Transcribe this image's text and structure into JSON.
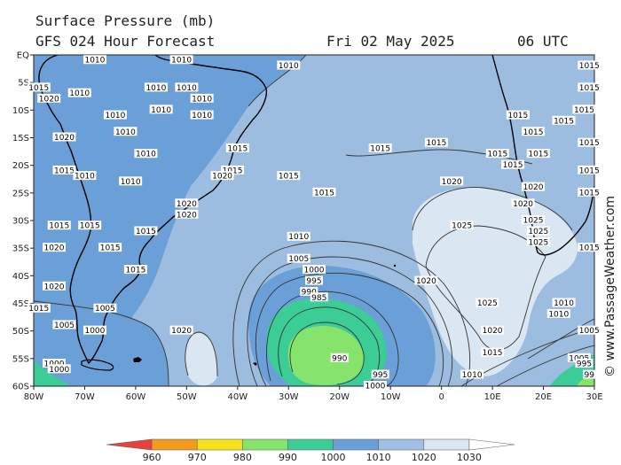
{
  "header": {
    "title": "Surface Pressure (mb)",
    "forecast": "GFS 024 Hour Forecast",
    "date": "Fri 02 May 2025",
    "time": "06 UTC"
  },
  "credit": "© www.PassageWeather.com",
  "axes": {
    "lat_labels": [
      "EQ",
      "5S",
      "10S",
      "15S",
      "20S",
      "25S",
      "30S",
      "35S",
      "40S",
      "45S",
      "50S",
      "55S",
      "60S"
    ],
    "lon_labels": [
      "80W",
      "70W",
      "60W",
      "50W",
      "40W",
      "30W",
      "20W",
      "10W",
      "0",
      "10E",
      "20E",
      "30E"
    ]
  },
  "isobar_labels": [
    {
      "t": "1010",
      "lon": -68,
      "lat": -1
    },
    {
      "t": "1010",
      "lon": -51,
      "lat": -1
    },
    {
      "t": "1010",
      "lon": -30,
      "lat": -2
    },
    {
      "t": "1015",
      "lon": -79,
      "lat": -6
    },
    {
      "t": "1010",
      "lon": -71,
      "lat": -7
    },
    {
      "t": "1010",
      "lon": -56,
      "lat": -6
    },
    {
      "t": "1010",
      "lon": -50,
      "lat": -6
    },
    {
      "t": "1010",
      "lon": -47,
      "lat": -8
    },
    {
      "t": "1020",
      "lon": -77,
      "lat": -8
    },
    {
      "t": "1010",
      "lon": -64,
      "lat": -11
    },
    {
      "t": "1010",
      "lon": -55,
      "lat": -10
    },
    {
      "t": "1010",
      "lon": -47,
      "lat": -11
    },
    {
      "t": "1010",
      "lon": -62,
      "lat": -14
    },
    {
      "t": "1010",
      "lon": -58,
      "lat": -18
    },
    {
      "t": "1020",
      "lon": -74,
      "lat": -15
    },
    {
      "t": "1015",
      "lon": -40,
      "lat": -17
    },
    {
      "t": "1015",
      "lon": -41,
      "lat": -21
    },
    {
      "t": "1020",
      "lon": -43,
      "lat": -22
    },
    {
      "t": "1015",
      "lon": -30,
      "lat": -22
    },
    {
      "t": "1015",
      "lon": -23,
      "lat": -25
    },
    {
      "t": "1015",
      "lon": -12,
      "lat": -17
    },
    {
      "t": "1015",
      "lon": -74,
      "lat": -21
    },
    {
      "t": "1010",
      "lon": -70,
      "lat": -22
    },
    {
      "t": "1010",
      "lon": -61,
      "lat": -23
    },
    {
      "t": "1020",
      "lon": -50,
      "lat": -27
    },
    {
      "t": "1020",
      "lon": -50,
      "lat": -29
    },
    {
      "t": "1015",
      "lon": -75,
      "lat": -31
    },
    {
      "t": "1015",
      "lon": -69,
      "lat": -31
    },
    {
      "t": "1015",
      "lon": -58,
      "lat": -32
    },
    {
      "t": "1015",
      "lon": -65,
      "lat": -35
    },
    {
      "t": "1020",
      "lon": -76,
      "lat": -35
    },
    {
      "t": "1015",
      "lon": -60,
      "lat": -39
    },
    {
      "t": "1010",
      "lon": -28,
      "lat": -33
    },
    {
      "t": "1005",
      "lon": -28,
      "lat": -37
    },
    {
      "t": "1000",
      "lon": -25,
      "lat": -39
    },
    {
      "t": "995",
      "lon": -25,
      "lat": -41
    },
    {
      "t": "990",
      "lon": -26,
      "lat": -43
    },
    {
      "t": "985",
      "lon": -24,
      "lat": -44
    },
    {
      "t": "990",
      "lon": -20,
      "lat": -55
    },
    {
      "t": "995",
      "lon": -12,
      "lat": -58
    },
    {
      "t": "1000",
      "lon": -13,
      "lat": -60
    },
    {
      "t": "1020",
      "lon": -76,
      "lat": -42
    },
    {
      "t": "1015",
      "lon": -79,
      "lat": -46
    },
    {
      "t": "1005",
      "lon": -74,
      "lat": -49
    },
    {
      "t": "1005",
      "lon": -66,
      "lat": -46
    },
    {
      "t": "1000",
      "lon": -68,
      "lat": -50
    },
    {
      "t": "1000",
      "lon": -76,
      "lat": -56
    },
    {
      "t": "1020",
      "lon": -51,
      "lat": -50
    },
    {
      "t": "1015",
      "lon": -1,
      "lat": -16
    },
    {
      "t": "1020",
      "lon": 2,
      "lat": -23
    },
    {
      "t": "1025",
      "lon": 4,
      "lat": -31
    },
    {
      "t": "1020",
      "lon": -3,
      "lat": -41
    },
    {
      "t": "1025",
      "lon": 9,
      "lat": -45
    },
    {
      "t": "1020",
      "lon": 10,
      "lat": -50
    },
    {
      "t": "1015",
      "lon": 10,
      "lat": -54
    },
    {
      "t": "1010",
      "lon": 6,
      "lat": -58
    },
    {
      "t": "1015",
      "lon": 15,
      "lat": -11
    },
    {
      "t": "1015",
      "lon": 18,
      "lat": -14
    },
    {
      "t": "1015",
      "lon": 11,
      "lat": -18
    },
    {
      "t": "1015",
      "lon": 14,
      "lat": -20
    },
    {
      "t": "1015",
      "lon": 19,
      "lat": -18
    },
    {
      "t": "1020",
      "lon": 18,
      "lat": -24
    },
    {
      "t": "1020",
      "lon": 16,
      "lat": -27
    },
    {
      "t": "1025",
      "lon": 18,
      "lat": -30
    },
    {
      "t": "1025",
      "lon": 19,
      "lat": -32
    },
    {
      "t": "1025",
      "lon": 19,
      "lat": -34
    },
    {
      "t": "1015",
      "lon": 24,
      "lat": -12
    },
    {
      "t": "1015",
      "lon": 29,
      "lat": -16
    },
    {
      "t": "1015",
      "lon": 29,
      "lat": -21
    },
    {
      "t": "1015",
      "lon": 29,
      "lat": -2
    },
    {
      "t": "1015",
      "lon": 29,
      "lat": -6
    },
    {
      "t": "1015",
      "lon": 28,
      "lat": -10
    },
    {
      "t": "1015",
      "lon": 29,
      "lat": -25
    },
    {
      "t": "1015",
      "lon": 29,
      "lat": -35
    },
    {
      "t": "1010",
      "lon": 24,
      "lat": -45
    },
    {
      "t": "1010",
      "lon": 23,
      "lat": -47
    },
    {
      "t": "1005",
      "lon": 29,
      "lat": -50
    },
    {
      "t": "1005",
      "lon": 27,
      "lat": -55
    },
    {
      "t": "995",
      "lon": 28,
      "lat": -56
    },
    {
      "t": "99",
      "lon": 29,
      "lat": -58
    },
    {
      "t": "1000",
      "lon": -75,
      "lat": -57
    }
  ],
  "legend": {
    "labels": [
      "960",
      "970",
      "980",
      "990",
      "1000",
      "1010",
      "1020",
      "1030"
    ],
    "colors": [
      "#e8403c",
      "#f49a1e",
      "#f4e21a",
      "#86e46c",
      "#3ccc96",
      "#6a9fd8",
      "#9ec0e4",
      "#dbe6f3"
    ]
  },
  "colors": {
    "ocean_base": "#9dbde0",
    "land_low": "#6a9fd8",
    "high": "#dbe6f3",
    "low_1000": "#6a9fd8",
    "low_990": "#3ccc96",
    "low_985": "#86e46c",
    "contour": "#333333",
    "coast": "#000000"
  }
}
